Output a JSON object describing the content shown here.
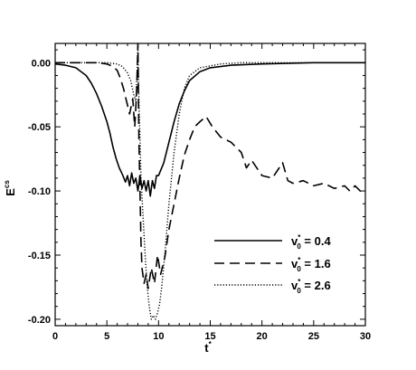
{
  "chart_data": {
    "type": "line",
    "xlabel": "t",
    "xlabel_superscript": "*",
    "ylabel": "E",
    "ylabel_superscript": "cs",
    "xlim": [
      0,
      30
    ],
    "ylim": [
      -0.205,
      0.015
    ],
    "x_ticks": [
      0,
      5,
      10,
      15,
      20,
      25,
      30
    ],
    "x_tick_labels": [
      "0",
      "5",
      "10",
      "15",
      "20",
      "25",
      "30"
    ],
    "y_ticks": [
      0.0,
      -0.05,
      -0.1,
      -0.15,
      -0.2
    ],
    "y_tick_labels": [
      "0.00",
      "-0.05",
      "-0.10",
      "-0.15",
      "-0.20"
    ],
    "grid": false,
    "legend_position": "bottom-right",
    "series": [
      {
        "name": "0.4",
        "legend": {
          "symbol": "v",
          "superscript": "*",
          "subscript": "0",
          "eq": " = ",
          "value": "0.4"
        },
        "style": "solid",
        "x": [
          0,
          1,
          2,
          3,
          3.5,
          4,
          4.5,
          5,
          5.3,
          5.6,
          5.9,
          6.2,
          6.5,
          6.8,
          7.0,
          7.2,
          7.4,
          7.6,
          7.8,
          8.0,
          8.2,
          8.4,
          8.6,
          8.8,
          9.0,
          9.2,
          9.4,
          9.6,
          9.8,
          10,
          10.5,
          11,
          11.5,
          12,
          12.5,
          13,
          14,
          15,
          17,
          20,
          25,
          30
        ],
        "y": [
          -0.001,
          -0.002,
          -0.004,
          -0.01,
          -0.016,
          -0.024,
          -0.034,
          -0.046,
          -0.055,
          -0.066,
          -0.075,
          -0.082,
          -0.087,
          -0.093,
          -0.088,
          -0.096,
          -0.086,
          -0.094,
          -0.09,
          -0.1,
          -0.088,
          -0.098,
          -0.092,
          -0.1,
          -0.092,
          -0.104,
          -0.092,
          -0.098,
          -0.088,
          -0.088,
          -0.078,
          -0.062,
          -0.046,
          -0.032,
          -0.022,
          -0.014,
          -0.007,
          -0.004,
          -0.002,
          -0.001,
          0.0,
          0.0
        ]
      },
      {
        "name": "1.6",
        "legend": {
          "symbol": "v",
          "superscript": "*",
          "subscript": "0",
          "eq": " = ",
          "value": "1.6"
        },
        "style": "dashed",
        "x": [
          0,
          4,
          5,
          5.6,
          6.0,
          6.3,
          6.6,
          6.9,
          7.2,
          7.5,
          7.7,
          7.9,
          8.0,
          8.1,
          8.2,
          8.3,
          8.4,
          8.6,
          8.8,
          9.0,
          9.3,
          9.6,
          9.9,
          10.2,
          10.6,
          11.0,
          11.5,
          12.0,
          12.5,
          13.0,
          13.5,
          14.0,
          14.6,
          15.2,
          16.0,
          17.0,
          18.0,
          18.5,
          19.0,
          20.0,
          21.0,
          22.0,
          22.5,
          23.0,
          24.0,
          25.0,
          26.0,
          27.0,
          28.0,
          28.5,
          29.0,
          29.5,
          30.0
        ],
        "y": [
          0.0,
          0.0,
          -0.001,
          -0.003,
          -0.006,
          -0.012,
          -0.02,
          -0.03,
          -0.04,
          -0.028,
          -0.05,
          -0.02,
          0.015,
          -0.06,
          -0.1,
          -0.14,
          -0.16,
          -0.172,
          -0.165,
          -0.176,
          -0.16,
          -0.172,
          -0.15,
          -0.165,
          -0.152,
          -0.13,
          -0.11,
          -0.09,
          -0.072,
          -0.06,
          -0.05,
          -0.046,
          -0.042,
          -0.05,
          -0.058,
          -0.062,
          -0.07,
          -0.082,
          -0.076,
          -0.088,
          -0.09,
          -0.078,
          -0.092,
          -0.094,
          -0.092,
          -0.096,
          -0.094,
          -0.098,
          -0.096,
          -0.1,
          -0.096,
          -0.1,
          -0.098
        ]
      },
      {
        "name": "2.6",
        "legend": {
          "symbol": "v",
          "superscript": "*",
          "subscript": "0",
          "eq": " = ",
          "value": "2.6"
        },
        "style": "dotted",
        "x": [
          0,
          5,
          6.0,
          6.5,
          7.0,
          7.3,
          7.6,
          7.8,
          7.9,
          8.0,
          8.1,
          8.2,
          8.3,
          8.5,
          8.7,
          8.9,
          9.1,
          9.3,
          9.5,
          9.7,
          9.9,
          10.1,
          10.3,
          10.6,
          11.0,
          11.5,
          12.0,
          12.5,
          13.0,
          14.0,
          16.0,
          18.0,
          20.0,
          25.0,
          30.0
        ],
        "y": [
          0.0,
          0.0,
          -0.001,
          -0.003,
          -0.008,
          -0.014,
          -0.025,
          -0.03,
          -0.012,
          0.012,
          -0.03,
          -0.06,
          -0.09,
          -0.12,
          -0.15,
          -0.175,
          -0.19,
          -0.2,
          -0.197,
          -0.2,
          -0.195,
          -0.188,
          -0.175,
          -0.15,
          -0.11,
          -0.07,
          -0.04,
          -0.02,
          -0.01,
          -0.004,
          -0.001,
          0.0,
          0.0,
          0.0,
          0.0
        ]
      }
    ]
  }
}
